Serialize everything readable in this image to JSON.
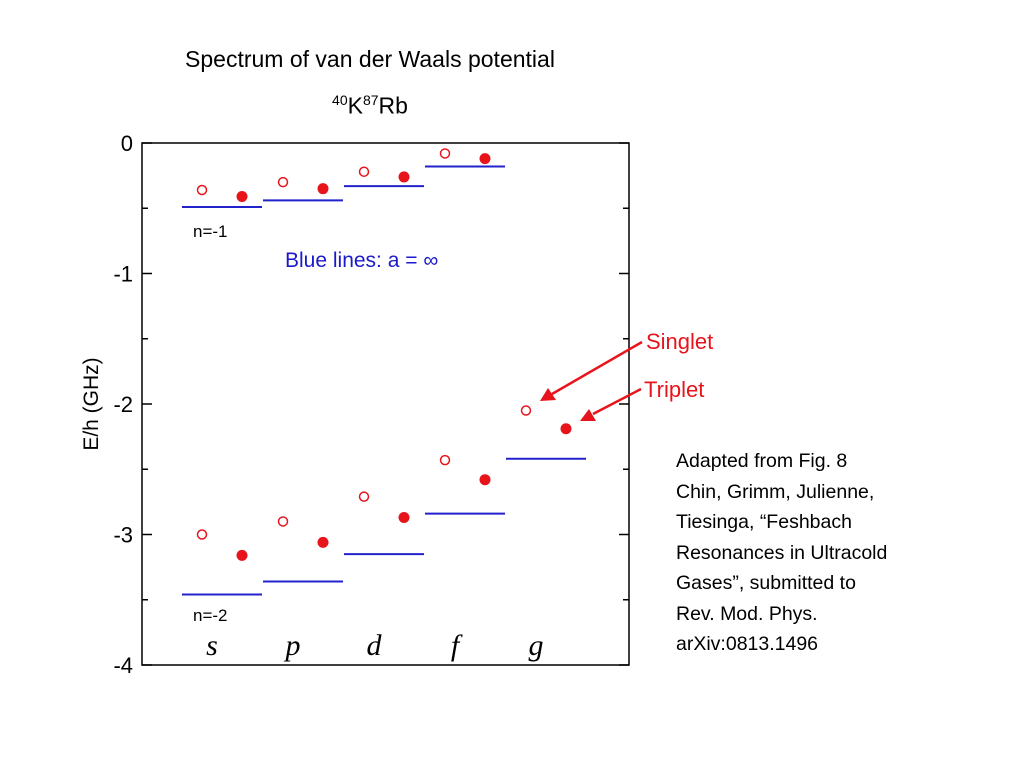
{
  "slide": {
    "title": "Spectrum of van der Waals potential",
    "subtitle": {
      "mass1": "40",
      "element1": "K",
      "mass2": "87",
      "element2": "Rb"
    },
    "citation_lines": [
      "Adapted from Fig. 8",
      "Chin, Grimm, Julienne,",
      "Tiesinga, “Feshbach",
      "Resonances in Ultracold",
      "Gases”, submitted to",
      "Rev. Mod. Phys.",
      "arXiv:0813.1496"
    ]
  },
  "chart_data": {
    "type": "scatter",
    "ylabel": "E/h (GHz)",
    "ylim": [
      -4,
      0
    ],
    "yticks": [
      "0",
      "-1",
      "-2",
      "-3",
      "-4"
    ],
    "yticks_values": [
      0,
      -1,
      -2,
      -3,
      -4
    ],
    "categories": [
      "s",
      "p",
      "d",
      "f",
      "g"
    ],
    "grid": false,
    "colors": {
      "blue": "#2222cc",
      "red": "#e8141c"
    },
    "series": [
      {
        "name": "Singlet",
        "marker": "open-circle",
        "band_n1": [
          -0.36,
          -0.3,
          -0.22,
          -0.08
        ],
        "band_n2": [
          -3.0,
          -2.9,
          -2.71,
          -2.43,
          -2.05
        ]
      },
      {
        "name": "Triplet",
        "marker": "filled-circle",
        "band_n1": [
          -0.41,
          -0.35,
          -0.26,
          -0.12
        ],
        "band_n2": [
          -3.16,
          -3.06,
          -2.87,
          -2.58,
          -2.19
        ]
      },
      {
        "name": "a = ∞",
        "marker": "line",
        "band_n1": [
          -0.49,
          -0.44,
          -0.33,
          -0.18
        ],
        "band_n2": [
          -3.46,
          -3.36,
          -3.15,
          -2.84,
          -2.42
        ]
      }
    ],
    "annotations": {
      "blue_lines": "Blue lines: a = ∞",
      "singlet": "Singlet",
      "triplet": "Triplet",
      "n_minus1": "n=-1",
      "n_minus2": "n=-2"
    }
  }
}
